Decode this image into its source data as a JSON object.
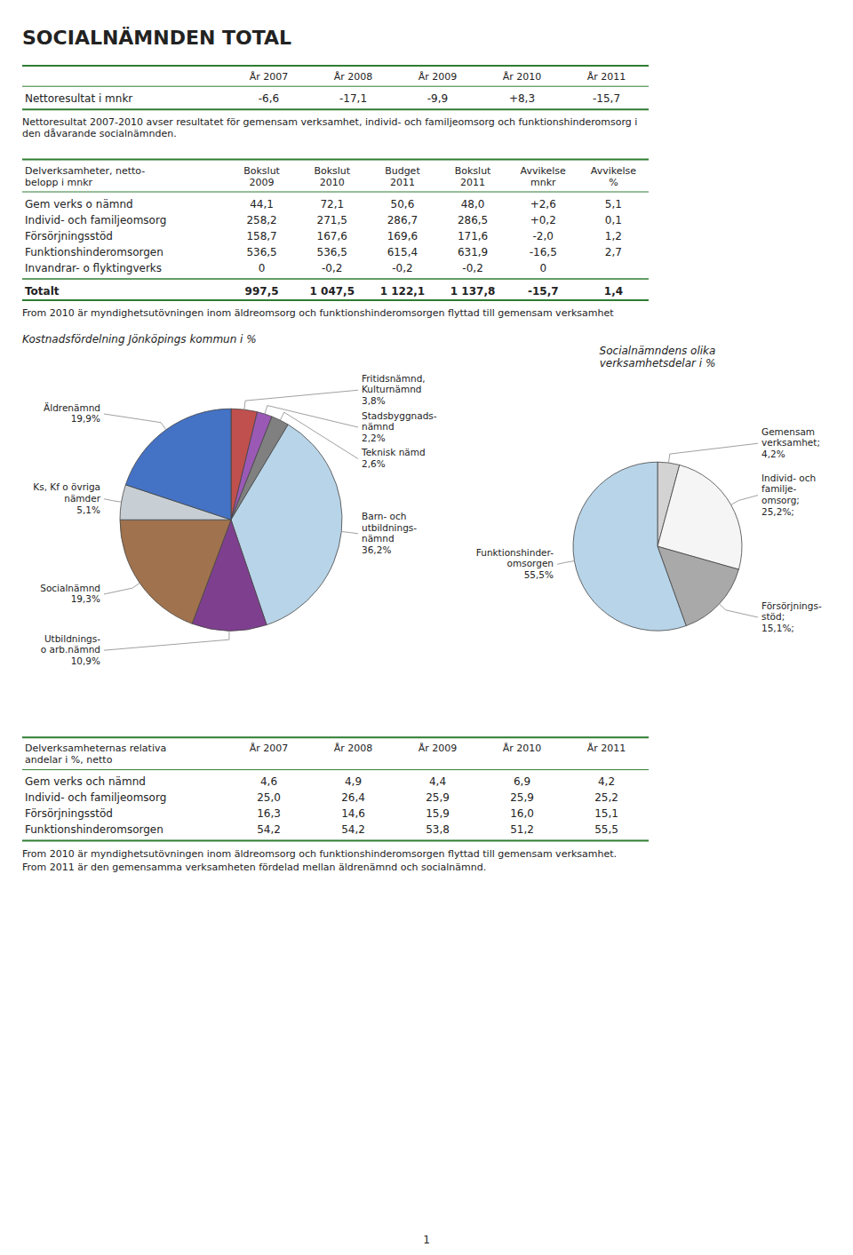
{
  "chart_data": [
    {
      "type": "table",
      "title": "SOCIALNÄMNDEN TOTAL",
      "color": "#2e7d32",
      "header": [
        "År 2007",
        "År 2008",
        "År 2009",
        "År 2010",
        "År 2011"
      ],
      "rows": [
        [
          "Nettoresultat i mnkr",
          "-6,6",
          "-17,1",
          "-9,9",
          "+8,3",
          "-15,7"
        ]
      ],
      "annotations": [
        "Nettoresultat 2007-2010 avser resultatet för gemensam verksamhet, individ- och familjeomsorg och funktionshinderomsorg i\nden dåvarande socialnämnden."
      ]
    },
    {
      "type": "table",
      "color": "#2e7d32",
      "header": [
        "Delverksamheter, netto-\nbelopp i mnkr",
        "Bokslut\n2009",
        "Bokslut\n2010",
        "Budget\n2011",
        "Bokslut\n2011",
        "Avvikelse\nmnkr",
        "Avvikelse\n%"
      ],
      "rows": [
        [
          "Gem verks o nämnd",
          "44,1",
          "72,1",
          "50,6",
          "48,0",
          "+2,6",
          "5,1"
        ],
        [
          "Individ- och familjeomsorg",
          "258,2",
          "271,5",
          "286,7",
          "286,5",
          "+0,2",
          "0,1"
        ],
        [
          "Försörjningsstöd",
          "158,7",
          "167,6",
          "169,6",
          "171,6",
          "-2,0",
          "1,2"
        ],
        [
          "Funktionshinderomsorgen",
          "536,5",
          "536,5",
          "615,4",
          "631,9",
          "-16,5",
          "2,7"
        ],
        [
          "Invandrar- o flyktingverks",
          "0",
          "-0,2",
          "-0,2",
          "-0,2",
          "0",
          null
        ]
      ],
      "total": [
        "Totalt",
        "997,5",
        "1 047,5",
        "1 122,1",
        "1 137,8",
        "-15,7",
        "1,4"
      ],
      "annotations": [
        "From 2010 är myndighetsutövningen inom äldreomsorg och funktionshinderomsorgen flyttad till gemensam verksamhet"
      ]
    },
    {
      "type": "pie",
      "title": "Kostnadsfördelning Jönköpings kommun i %",
      "categories": [
        "Fritidsnämnd,\nKulturnämnd",
        "Stadsbyggnads-\nnämnd",
        "Teknisk nämd",
        "Barn- och\nutbildnings-\nnämnd",
        "Utbildnings-\no arb.nämnd",
        "Socialnämnd",
        "Ks, Kf o övriga\nnämder",
        "Äldrenämnd"
      ],
      "values": [
        3.8,
        2.2,
        2.6,
        36.2,
        10.9,
        19.3,
        5.1,
        19.9
      ],
      "value_labels": [
        "3,8%",
        "2,2%",
        "2,6%",
        "36,2%",
        "10,9%",
        "19,3%",
        "5,1%",
        "19,9%"
      ],
      "colors": [
        "#c0504d",
        "#9b59b6",
        "#808080",
        "#b8d4e8",
        "#7f3f8f",
        "#a0724d",
        "#c8cfd4",
        "#4472c4"
      ]
    },
    {
      "type": "pie",
      "title": "Socialnämndens olika\nverksamhetsdelar i %",
      "categories": [
        "Gemensam\nverksamhet;",
        "Individ- och\nfamilje-\nomsorg;",
        "Försörjnings-\nstöd;",
        "Funktionshinder-\nomsorgen"
      ],
      "values": [
        4.2,
        25.2,
        15.1,
        55.5
      ],
      "value_labels": [
        "4,2%",
        "25,2%;",
        "15,1%;",
        "55,5%"
      ],
      "colors": [
        "#d3d3d3",
        "#f5f5f5",
        "#a9a9a9",
        "#b8d4e8"
      ]
    },
    {
      "type": "table",
      "color": "#2e7d32",
      "header": [
        "Delverksamheternas relativa\nandelar i %, netto",
        "År 2007",
        "År 2008",
        "År 2009",
        "År 2010",
        "År 2011"
      ],
      "rows": [
        [
          "Gem verks och nämnd",
          "4,6",
          "4,9",
          "4,4",
          "6,9",
          "4,2"
        ],
        [
          "Individ- och familjeomsorg",
          "25,0",
          "26,4",
          "25,9",
          "25,9",
          "25,2"
        ],
        [
          "Försörjningsstöd",
          "16,3",
          "14,6",
          "15,9",
          "16,0",
          "15,1"
        ],
        [
          "Funktionshinderomsorgen",
          "54,2",
          "54,2",
          "53,8",
          "51,2",
          "55,5"
        ]
      ],
      "annotations": [
        "From 2010 är myndighetsutövningen inom äldreomsorg och funktionshinderomsorgen flyttad till gemensam verksamhet.",
        "From 2011 är den gemensamma verksamheten fördelad mellan äldrenämnd och socialnämnd."
      ],
      "footer": "1"
    }
  ]
}
